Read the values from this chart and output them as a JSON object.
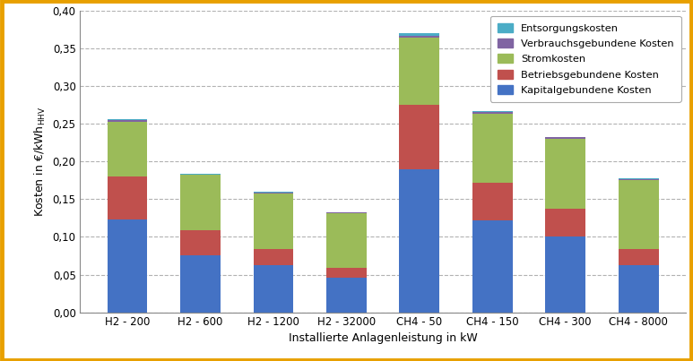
{
  "categories": [
    "H2 - 200",
    "H2 - 600",
    "H2 - 1200",
    "H2 - 32000",
    "CH4 - 50",
    "CH4 - 150",
    "CH4 - 300",
    "CH4 - 8000"
  ],
  "series": {
    "Kapitalgebundene Kosten": [
      0.123,
      0.076,
      0.062,
      0.046,
      0.19,
      0.122,
      0.1,
      0.062
    ],
    "Betriebsgebundene Kosten": [
      0.057,
      0.033,
      0.022,
      0.013,
      0.085,
      0.05,
      0.038,
      0.022
    ],
    "Stromkosten": [
      0.073,
      0.073,
      0.074,
      0.073,
      0.09,
      0.092,
      0.092,
      0.092
    ],
    "Verbrauchsgebundene Kosten": [
      0.002,
      0.001,
      0.001,
      0.001,
      0.002,
      0.002,
      0.002,
      0.001
    ],
    "Entsorgungskosten": [
      0.001,
      0.001,
      0.001,
      0.0,
      0.003,
      0.001,
      0.001,
      0.001
    ]
  },
  "colors": {
    "Kapitalgebundene Kosten": "#4472C4",
    "Betriebsgebundene Kosten": "#C0504D",
    "Stromkosten": "#9BBB59",
    "Verbrauchsgebundene Kosten": "#8064A2",
    "Entsorgungskosten": "#4BACC6"
  },
  "xlabel": "Installierte Anlagenleistung in kW",
  "ylim": [
    0,
    0.4
  ],
  "yticks": [
    0.0,
    0.05,
    0.1,
    0.15,
    0.2,
    0.25,
    0.3,
    0.35,
    0.4
  ],
  "background_color": "#FFFFFF",
  "border_color": "#E8A000",
  "grid_color": "#AAAAAA",
  "bar_width": 0.55,
  "legend_order": [
    "Entsorgungskosten",
    "Verbrauchsgebundene Kosten",
    "Stromkosten",
    "Betriebsgebundene Kosten",
    "Kapitalgebundene Kosten"
  ]
}
